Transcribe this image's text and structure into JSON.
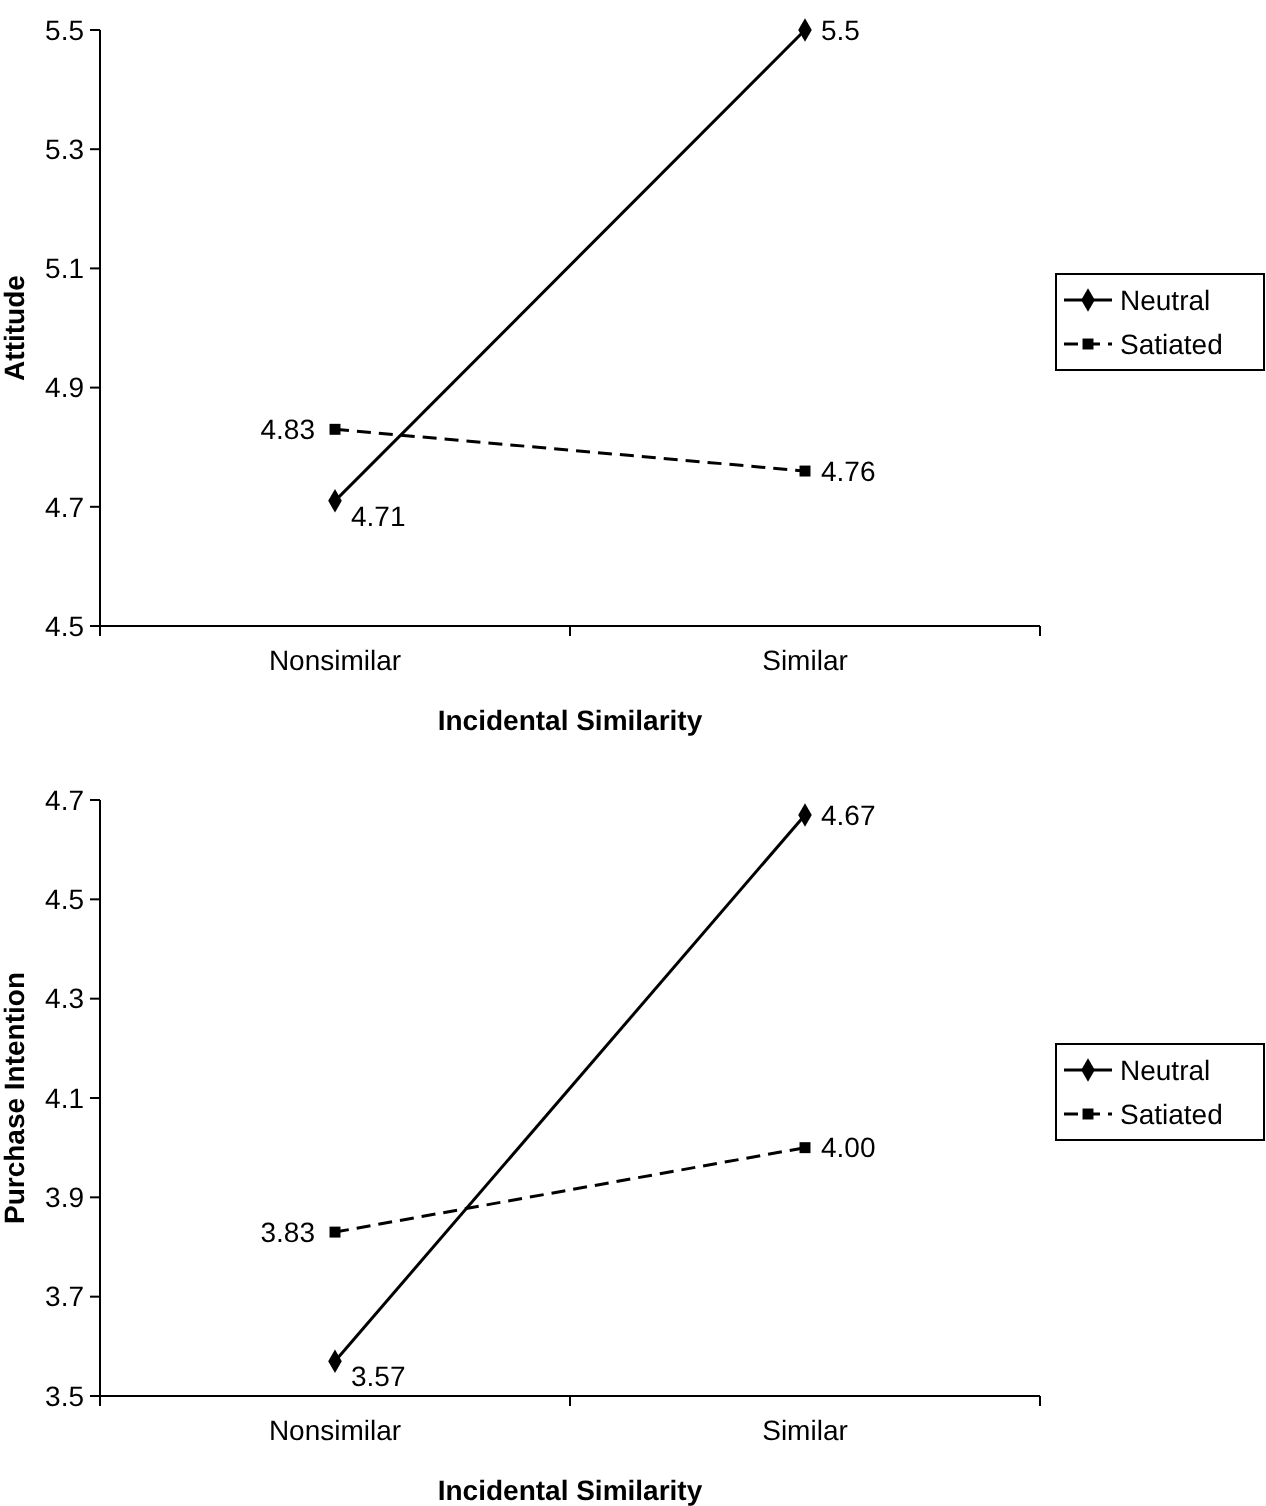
{
  "chart_data": [
    {
      "type": "line",
      "xlabel": "Incidental Similarity",
      "ylabel": "Attitude",
      "categories": [
        "Nonsimilar",
        "Similar"
      ],
      "ylim": [
        4.5,
        5.5
      ],
      "yticks": [
        4.5,
        4.7,
        4.9,
        5.1,
        5.3,
        5.5
      ],
      "legend": "right",
      "series": [
        {
          "name": "Neutral",
          "color": "#000000",
          "marker": "diamond",
          "line_style": "solid",
          "values": [
            4.71,
            5.5
          ],
          "value_labels": [
            "4.71",
            "5.5"
          ]
        },
        {
          "name": "Satiated",
          "color": "#000000",
          "marker": "square",
          "line_style": "dashed",
          "values": [
            4.83,
            4.76
          ],
          "value_labels": [
            "4.83",
            "4.76"
          ]
        }
      ]
    },
    {
      "type": "line",
      "xlabel": "Incidental Similarity",
      "ylabel": "Purchase Intention",
      "categories": [
        "Nonsimilar",
        "Similar"
      ],
      "ylim": [
        3.5,
        4.7
      ],
      "yticks": [
        3.5,
        3.7,
        3.9,
        4.1,
        4.3,
        4.5,
        4.7
      ],
      "legend": "right",
      "series": [
        {
          "name": "Neutral",
          "color": "#000000",
          "marker": "diamond",
          "line_style": "solid",
          "values": [
            3.57,
            4.67
          ],
          "value_labels": [
            "3.57",
            "4.67"
          ]
        },
        {
          "name": "Satiated",
          "color": "#000000",
          "marker": "square",
          "line_style": "dashed",
          "values": [
            3.83,
            4.0
          ],
          "value_labels": [
            "3.83",
            "4.00"
          ]
        }
      ]
    }
  ]
}
